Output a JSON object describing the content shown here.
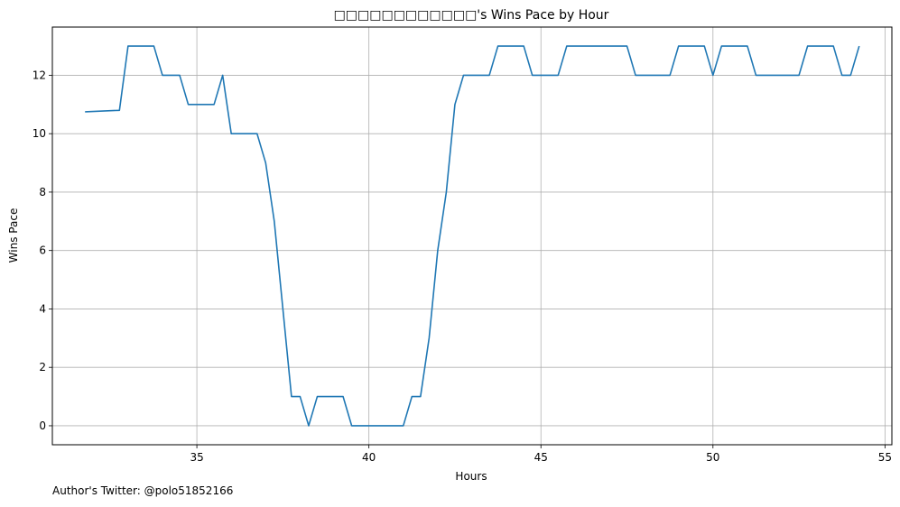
{
  "chart_data": {
    "type": "line",
    "title": "□□□□□□□□□□□□'s Wins Pace by Hour",
    "xlabel": "Hours",
    "ylabel": "Wins Pace",
    "xlim": [
      30.8,
      55.2
    ],
    "ylim": [
      -0.65,
      13.65
    ],
    "x_ticks": [
      35,
      40,
      45,
      50,
      55
    ],
    "y_ticks": [
      0,
      2,
      4,
      6,
      8,
      10,
      12
    ],
    "grid": true,
    "legend": "none",
    "line_color": "#1f77b4",
    "series": [
      {
        "x": [
          31.75,
          32.75,
          33.0,
          33.75,
          34.0,
          34.5,
          34.75,
          35.5,
          35.75,
          36.0,
          36.75,
          37.0,
          37.25,
          37.5,
          37.75,
          38.0,
          38.25,
          38.5,
          39.25,
          39.5,
          41.0,
          41.25,
          41.5,
          41.75,
          42.0,
          42.25,
          42.5,
          42.75,
          43.5,
          43.75,
          44.5,
          44.75,
          45.5,
          45.75,
          47.5,
          47.75,
          48.75,
          49.0,
          49.75,
          50.0,
          50.25,
          51.0,
          51.25,
          52.5,
          52.75,
          53.5,
          53.75,
          54.0,
          54.25
        ],
        "values": [
          10.75,
          10.8,
          13,
          13,
          12,
          12,
          11,
          11,
          12,
          10,
          10,
          9,
          7,
          4,
          1,
          1,
          0,
          1,
          1,
          0,
          0,
          1,
          1,
          3,
          6,
          8,
          11,
          12,
          12,
          13,
          13,
          12,
          12,
          13,
          13,
          12,
          12,
          13,
          13,
          12,
          13,
          13,
          12,
          12,
          13,
          13,
          12,
          12,
          13
        ]
      }
    ]
  },
  "footer": {
    "text": "Author's Twitter: @polo51852166"
  }
}
